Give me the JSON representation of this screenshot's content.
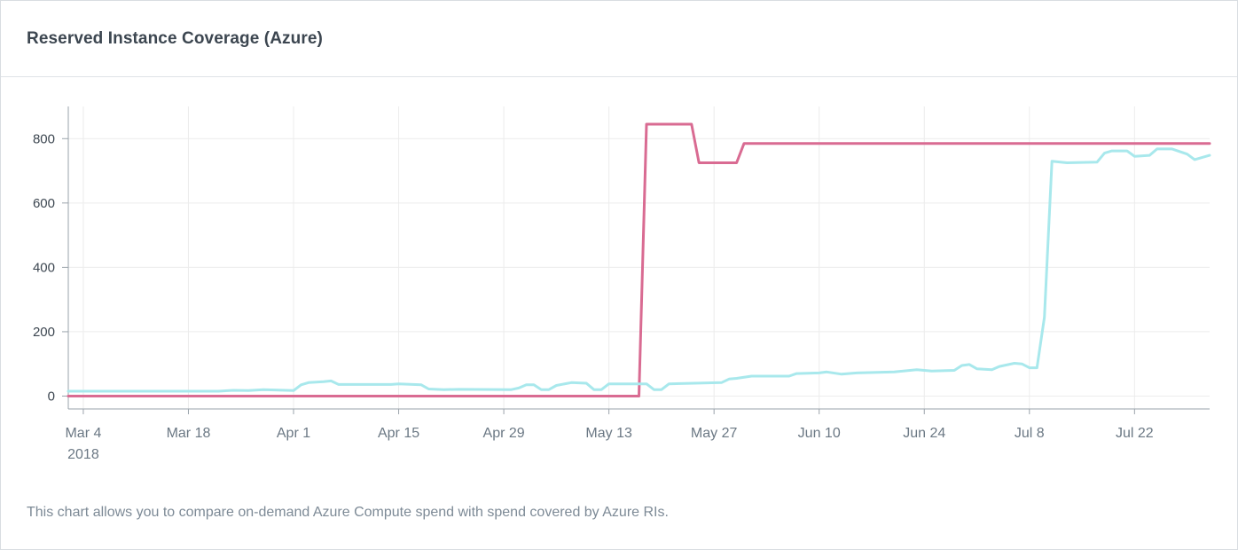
{
  "panel": {
    "title": "Reserved Instance Coverage (Azure)",
    "footnote": "This chart allows you to compare on-demand Azure Compute spend with spend covered by Azure RIs."
  },
  "chart_data": {
    "type": "line",
    "title": "Reserved Instance Coverage (Azure)",
    "xlabel": "",
    "ylabel": "",
    "ylim": [
      -40,
      900
    ],
    "y_ticks": [
      0,
      200,
      400,
      600,
      800
    ],
    "y_tick_labels": [
      "0",
      "200",
      "400",
      "600",
      "800"
    ],
    "x_range": [
      "2018-03-02",
      "2018-08-01"
    ],
    "x_ticks": [
      "2018-03-04",
      "2018-03-18",
      "2018-04-01",
      "2018-04-15",
      "2018-04-29",
      "2018-05-13",
      "2018-05-27",
      "2018-06-10",
      "2018-06-24",
      "2018-07-08",
      "2018-07-22"
    ],
    "x_tick_labels": [
      "Mar 4",
      "Mar 18",
      "Apr 1",
      "Apr 15",
      "Apr 29",
      "May 13",
      "May 27",
      "Jun 10",
      "Jun 24",
      "Jul 8",
      "Jul 22"
    ],
    "x_tick_sublabel": "2018",
    "grid": true,
    "legend": "none",
    "series": [
      {
        "color": "#d96b92",
        "points": [
          [
            "2018-03-02",
            0
          ],
          [
            "2018-05-17",
            0
          ],
          [
            "2018-05-18",
            845
          ],
          [
            "2018-05-24",
            845
          ],
          [
            "2018-05-25",
            725
          ],
          [
            "2018-05-30",
            725
          ],
          [
            "2018-05-31",
            785
          ],
          [
            "2018-08-01",
            785
          ]
        ]
      },
      {
        "color": "#a8e8ec",
        "points": [
          [
            "2018-03-02",
            15
          ],
          [
            "2018-03-22",
            15
          ],
          [
            "2018-03-24",
            18
          ],
          [
            "2018-03-26",
            17
          ],
          [
            "2018-03-28",
            20
          ],
          [
            "2018-04-01",
            17
          ],
          [
            "2018-04-02",
            35
          ],
          [
            "2018-04-03",
            42
          ],
          [
            "2018-04-05",
            45
          ],
          [
            "2018-04-06",
            47
          ],
          [
            "2018-04-07",
            36
          ],
          [
            "2018-04-14",
            36
          ],
          [
            "2018-04-15",
            38
          ],
          [
            "2018-04-18",
            35
          ],
          [
            "2018-04-19",
            22
          ],
          [
            "2018-04-21",
            20
          ],
          [
            "2018-04-23",
            21
          ],
          [
            "2018-04-30",
            20
          ],
          [
            "2018-05-01",
            25
          ],
          [
            "2018-05-02",
            35
          ],
          [
            "2018-05-03",
            35
          ],
          [
            "2018-05-04",
            20
          ],
          [
            "2018-05-05",
            20
          ],
          [
            "2018-05-06",
            33
          ],
          [
            "2018-05-08",
            42
          ],
          [
            "2018-05-10",
            40
          ],
          [
            "2018-05-11",
            20
          ],
          [
            "2018-05-12",
            20
          ],
          [
            "2018-05-13",
            38
          ],
          [
            "2018-05-17",
            38
          ],
          [
            "2018-05-18",
            38
          ],
          [
            "2018-05-19",
            20
          ],
          [
            "2018-05-20",
            20
          ],
          [
            "2018-05-21",
            38
          ],
          [
            "2018-05-28",
            42
          ],
          [
            "2018-05-29",
            53
          ],
          [
            "2018-05-30",
            55
          ],
          [
            "2018-06-01",
            62
          ],
          [
            "2018-06-06",
            62
          ],
          [
            "2018-06-07",
            70
          ],
          [
            "2018-06-10",
            72
          ],
          [
            "2018-06-11",
            75
          ],
          [
            "2018-06-13",
            68
          ],
          [
            "2018-06-15",
            72
          ],
          [
            "2018-06-20",
            75
          ],
          [
            "2018-06-23",
            82
          ],
          [
            "2018-06-25",
            78
          ],
          [
            "2018-06-28",
            80
          ],
          [
            "2018-06-29",
            95
          ],
          [
            "2018-06-30",
            98
          ],
          [
            "2018-07-01",
            85
          ],
          [
            "2018-07-03",
            82
          ],
          [
            "2018-07-04",
            92
          ],
          [
            "2018-07-06",
            102
          ],
          [
            "2018-07-07",
            100
          ],
          [
            "2018-07-08",
            88
          ],
          [
            "2018-07-09",
            88
          ],
          [
            "2018-07-10",
            245
          ],
          [
            "2018-07-11",
            730
          ],
          [
            "2018-07-13",
            725
          ],
          [
            "2018-07-17",
            727
          ],
          [
            "2018-07-18",
            755
          ],
          [
            "2018-07-19",
            762
          ],
          [
            "2018-07-21",
            762
          ],
          [
            "2018-07-22",
            745
          ],
          [
            "2018-07-24",
            748
          ],
          [
            "2018-07-25",
            768
          ],
          [
            "2018-07-27",
            768
          ],
          [
            "2018-07-29",
            752
          ],
          [
            "2018-07-30",
            735
          ],
          [
            "2018-08-01",
            748
          ]
        ]
      }
    ]
  }
}
